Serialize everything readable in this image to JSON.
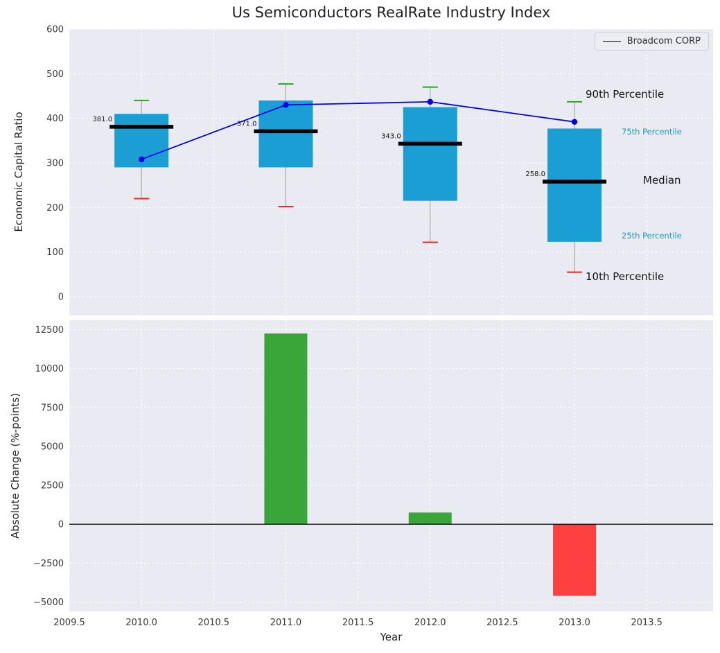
{
  "title": "Us Semiconductors RealRate Industry Index",
  "colors": {
    "panel_bg": "#eaebf2",
    "grid": "#ffffff",
    "box_fill": "#1b9ed3",
    "median_line": "#000000",
    "broadcom_line": "#0000ee",
    "green_cap": "#2ca02c",
    "red_cap": "#ff2020",
    "bar_green": "#3aa63a",
    "bar_red": "#ff4040",
    "tick_text": "#3a3a3a",
    "annotation_teal": "#1899c2",
    "whisker": "#999999",
    "zero_line": "#000000"
  },
  "chart_data": [
    {
      "type": "box",
      "title": "Us Semiconductors RealRate Industry Index",
      "ylabel": "Economic Capital Ratio",
      "ylim": [
        -42,
        600
      ],
      "yticks": [
        0,
        100,
        200,
        300,
        400,
        500,
        600
      ],
      "grid": true,
      "legend_position": "upper right",
      "years": [
        2010,
        2011,
        2012,
        2013
      ],
      "percentiles": {
        "p90": [
          440,
          477,
          470,
          437
        ],
        "p75": [
          410,
          440,
          425,
          377
        ],
        "median": [
          381,
          371,
          343,
          258
        ],
        "p25": [
          290,
          290,
          215,
          123
        ],
        "p10": [
          220,
          202,
          122,
          55
        ]
      },
      "median_labels": [
        "381.0",
        "371.0",
        "343.0",
        "258.0"
      ],
      "series": [
        {
          "name": "Broadcom CORP",
          "values": [
            308,
            430,
            437,
            392
          ],
          "color": "#0000ee"
        }
      ],
      "annotations": {
        "p90": "90th Percentile",
        "p75": "75th Percentile",
        "median": "Median",
        "p25": "25th Percentile",
        "p10": "10th Percentile"
      }
    },
    {
      "type": "bar",
      "xlabel": "Year",
      "ylabel": "Absolute Change (%-points)",
      "ylim": [
        -5600,
        13100
      ],
      "yticks": [
        -5000,
        -2500,
        0,
        2500,
        5000,
        7500,
        10000,
        12500
      ],
      "xticks": [
        2009.5,
        2010.0,
        2010.5,
        2011.0,
        2011.5,
        2012.0,
        2012.5,
        2013.0,
        2013.5
      ],
      "grid": true,
      "categories": [
        2010,
        2011,
        2012,
        2013
      ],
      "values": [
        0,
        12250,
        750,
        -4600
      ],
      "bar_colors": [
        "#3aa63a",
        "#3aa63a",
        "#3aa63a",
        "#ff4040"
      ]
    }
  ]
}
